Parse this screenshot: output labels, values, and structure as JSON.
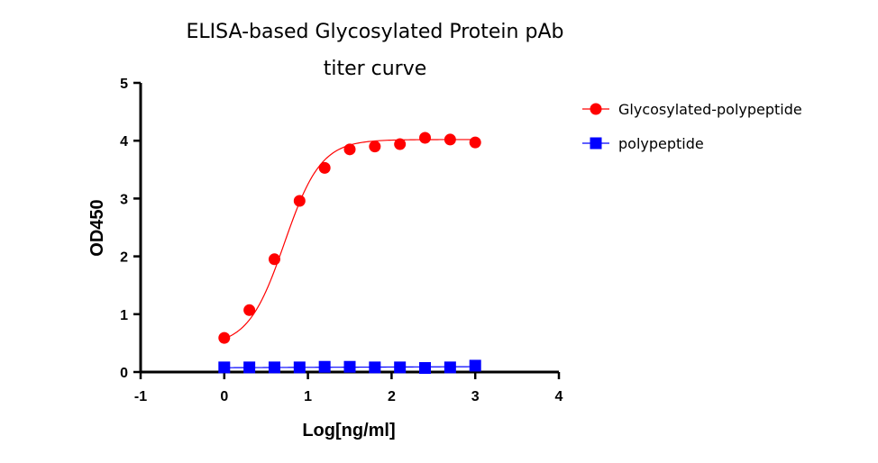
{
  "chart_data": {
    "type": "scatter",
    "title_line1": "ELISA-based Glycosylated Protein pAb",
    "title_line2": "titer curve",
    "xlabel": "Log[ng/ml]",
    "ylabel": "OD450",
    "xlim": [
      -1,
      4
    ],
    "ylim": [
      0,
      5
    ],
    "xticks": [
      -1,
      0,
      1,
      2,
      3,
      4
    ],
    "yticks": [
      0,
      1,
      2,
      3,
      4,
      5
    ],
    "grid": false,
    "legend_position": "right",
    "series": [
      {
        "name": "Glycosylated-polypeptide",
        "marker": "circle",
        "color": "#ff0000",
        "curve": "sigmoid",
        "x": [
          0,
          0.3,
          0.6,
          0.9,
          1.2,
          1.5,
          1.8,
          2.1,
          2.4,
          2.7,
          3.0
        ],
        "y": [
          0.59,
          1.07,
          1.95,
          2.96,
          3.53,
          3.85,
          3.9,
          3.94,
          4.05,
          4.02,
          3.97
        ]
      },
      {
        "name": "polypeptide",
        "marker": "square",
        "color": "#0000ff",
        "curve": "flat",
        "x": [
          0,
          0.3,
          0.6,
          0.9,
          1.2,
          1.5,
          1.8,
          2.1,
          2.4,
          2.7,
          3.0
        ],
        "y": [
          0.08,
          0.08,
          0.08,
          0.08,
          0.09,
          0.09,
          0.08,
          0.08,
          0.07,
          0.08,
          0.11
        ]
      }
    ]
  }
}
